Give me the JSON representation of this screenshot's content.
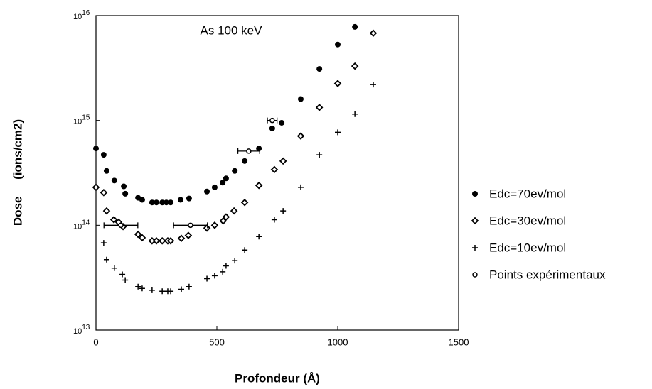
{
  "chart_data": {
    "type": "scatter",
    "title": "As 100 keV",
    "xlabel": "Profondeur   (Å)",
    "ylabel": "Dose     (ions/cm2)",
    "xlim": [
      0,
      1500
    ],
    "xticks": [
      0,
      500,
      1000,
      1500
    ],
    "ylim": [
      10000000000000.0,
      1e+16
    ],
    "yscale": "log",
    "yticks": [
      {
        "value": 10000000000000.0,
        "label": "10",
        "exponent": "13"
      },
      {
        "value": 100000000000000.0,
        "label": "10",
        "exponent": "14"
      },
      {
        "value": 1000000000000000.0,
        "label": "10",
        "exponent": "15"
      },
      {
        "value": 1e+16,
        "label": "10",
        "exponent": "16"
      }
    ],
    "grid": false,
    "legend": "right",
    "series": [
      {
        "name": "Edc=70ev/mol",
        "marker": "circle",
        "color": "#000000",
        "x": [
          0,
          32,
          44,
          76,
          115,
          121,
          174,
          191,
          232,
          250,
          274,
          291,
          309,
          350,
          385,
          459,
          491,
          524,
          538,
          574,
          615,
          674,
          729,
          768,
          847,
          924,
          1000,
          1071
        ],
        "values": [
          540000000000000.0,
          470000000000000.0,
          330000000000000.0,
          267000000000000.0,
          235000000000000.0,
          200000000000000.0,
          183000000000000.0,
          175000000000000.0,
          165000000000000.0,
          165000000000000.0,
          165000000000000.0,
          165000000000000.0,
          165000000000000.0,
          175000000000000.0,
          180000000000000.0,
          210000000000000.0,
          230000000000000.0,
          255000000000000.0,
          280000000000000.0,
          330000000000000.0,
          410000000000000.0,
          540000000000000.0,
          840000000000000.0,
          950000000000000.0,
          1600000000000000.0,
          3100000000000000.0,
          5300000000000000.0,
          7800000000000000.0
        ]
      },
      {
        "name": "Edc=30ev/mol",
        "marker": "diamond",
        "color": "#000000",
        "x": [
          0,
          32,
          44,
          74,
          94,
          112,
          174,
          191,
          232,
          250,
          274,
          297,
          309,
          353,
          382,
          459,
          491,
          526,
          538,
          571,
          615,
          674,
          738,
          774,
          847,
          924,
          1000,
          1071,
          1147
        ],
        "values": [
          230000000000000.0,
          205000000000000.0,
          137000000000000.0,
          113000000000000.0,
          107000000000000.0,
          97000000000000.0,
          82000000000000.0,
          76000000000000.0,
          71000000000000.0,
          71000000000000.0,
          71000000000000.0,
          71000000000000.0,
          71000000000000.0,
          75000000000000.0,
          80000000000000.0,
          94000000000000.0,
          100000000000000.0,
          110000000000000.0,
          120000000000000.0,
          137000000000000.0,
          165000000000000.0,
          240000000000000.0,
          340000000000000.0,
          410000000000000.0,
          710000000000000.0,
          1330000000000000.0,
          2250000000000000.0,
          3300000000000000.0,
          6800000000000000.0
        ]
      },
      {
        "name": "Edc=10ev/mol",
        "marker": "plus",
        "color": "#000000",
        "x": [
          32,
          44,
          76,
          109,
          121,
          174,
          191,
          232,
          274,
          297,
          309,
          353,
          385,
          459,
          491,
          524,
          538,
          574,
          615,
          674,
          738,
          774,
          847,
          924,
          1000,
          1071,
          1147
        ],
        "values": [
          68000000000000.0,
          47000000000000.0,
          39000000000000.0,
          34000000000000.0,
          30000000000000.0,
          26000000000000.0,
          25000000000000.0,
          24000000000000.0,
          23500000000000.0,
          23500000000000.0,
          23500000000000.0,
          24500000000000.0,
          26000000000000.0,
          31000000000000.0,
          33000000000000.0,
          36000000000000.0,
          41000000000000.0,
          46000000000000.0,
          58000000000000.0,
          78000000000000.0,
          113000000000000.0,
          137000000000000.0,
          230000000000000.0,
          470000000000000.0,
          770000000000000.0,
          1150000000000000.0,
          2200000000000000.0
        ]
      },
      {
        "name": "Points expérimentaux",
        "marker": "open-circle",
        "color": "#000000",
        "x": [
          103,
          391,
          632,
          729
        ],
        "xerr": [
          70,
          70,
          45,
          20
        ],
        "values": [
          100000000000000.0,
          100000000000000.0,
          510000000000000.0,
          1000000000000000.0
        ]
      }
    ]
  }
}
